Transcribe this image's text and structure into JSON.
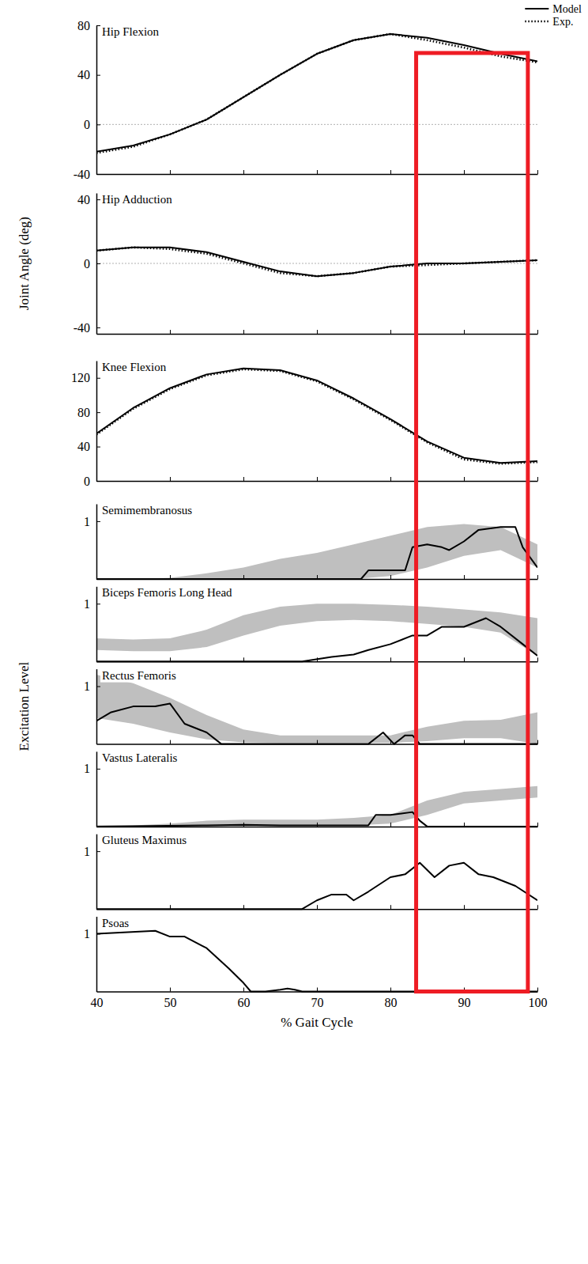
{
  "chart_data": [
    {
      "type": "line",
      "title": "Hip Flexion",
      "xlim": [
        40,
        100
      ],
      "xticks": [
        40,
        50,
        60,
        70,
        80,
        90,
        100
      ],
      "ylim": [
        -40,
        80
      ],
      "yticks": [
        -40,
        0,
        40,
        80
      ],
      "tick_labels": "y",
      "legend": "upper right",
      "series": [
        {
          "name": "Model",
          "type": "line",
          "line_style": "solid",
          "color": "#000000",
          "x": [
            40,
            45,
            50,
            55,
            60,
            65,
            70,
            75,
            80,
            85,
            90,
            95,
            100
          ],
          "values": [
            -22,
            -17,
            -8,
            4,
            22,
            40,
            57,
            68,
            73,
            70,
            64,
            57,
            51
          ]
        },
        {
          "name": "Exp.",
          "type": "line",
          "line_style": "dotted",
          "color": "#000000",
          "x": [
            40,
            45,
            50,
            55,
            60,
            65,
            70,
            75,
            80,
            85,
            90,
            95,
            100
          ],
          "values": [
            -23,
            -18,
            -8,
            4,
            22,
            40,
            57,
            68,
            73,
            68,
            62,
            55,
            50
          ]
        }
      ]
    },
    {
      "type": "line",
      "title": "Hip Adduction",
      "ylabel": "Joint Angle (deg)",
      "xlim": [
        40,
        100
      ],
      "xticks": [
        40,
        50,
        60,
        70,
        80,
        90,
        100
      ],
      "ylim": [
        -44,
        44
      ],
      "yticks": [
        -40,
        0,
        40
      ],
      "tick_labels": "y",
      "series": [
        {
          "type": "line",
          "line_style": "solid",
          "color": "#000000",
          "x": [
            40,
            45,
            50,
            55,
            60,
            65,
            70,
            75,
            80,
            85,
            90,
            95,
            100
          ],
          "values": [
            8,
            10,
            10,
            7,
            1,
            -5,
            -8,
            -6,
            -2,
            0,
            0,
            1,
            2
          ]
        },
        {
          "type": "line",
          "line_style": "dotted",
          "color": "#000000",
          "x": [
            40,
            45,
            50,
            55,
            60,
            65,
            70,
            75,
            80,
            85,
            90,
            95,
            100
          ],
          "values": [
            8,
            10,
            9,
            6,
            0,
            -6,
            -8,
            -6,
            -2,
            -1,
            0,
            1,
            2
          ]
        }
      ]
    },
    {
      "type": "line",
      "title": "Knee Flexion",
      "xlim": [
        40,
        100
      ],
      "xticks": [
        40,
        50,
        60,
        70,
        80,
        90,
        100
      ],
      "ylim": [
        0,
        140
      ],
      "yticks": [
        0,
        40,
        80,
        120
      ],
      "tick_labels": "y",
      "series": [
        {
          "type": "line",
          "line_style": "solid",
          "color": "#000000",
          "x": [
            40,
            45,
            50,
            55,
            60,
            65,
            70,
            75,
            80,
            85,
            90,
            95,
            100
          ],
          "values": [
            55,
            85,
            108,
            124,
            131,
            129,
            117,
            96,
            72,
            46,
            27,
            21,
            23
          ]
        },
        {
          "type": "line",
          "line_style": "dotted",
          "color": "#000000",
          "x": [
            40,
            45,
            50,
            55,
            60,
            65,
            70,
            75,
            80,
            85,
            90,
            95,
            100
          ],
          "values": [
            54,
            84,
            107,
            123,
            130,
            128,
            116,
            95,
            71,
            45,
            25,
            20,
            22
          ]
        }
      ]
    },
    {
      "type": "line",
      "title": "Semimembranosus",
      "xlim": [
        40,
        100
      ],
      "xticks": [
        40,
        50,
        60,
        70,
        80,
        90,
        100
      ],
      "ylim": [
        0,
        1.3
      ],
      "yticks": [
        1
      ],
      "tick_labels": "y",
      "series": [
        {
          "type": "area",
          "color": "#bfbfbf",
          "x": [
            40,
            45,
            50,
            55,
            60,
            65,
            70,
            75,
            80,
            85,
            90,
            95,
            100
          ],
          "lower": [
            0,
            0,
            0,
            0,
            0,
            0,
            0,
            0,
            0.05,
            0.2,
            0.4,
            0.5,
            0.2
          ],
          "upper": [
            0,
            0,
            0.02,
            0.1,
            0.2,
            0.35,
            0.45,
            0.6,
            0.75,
            0.9,
            0.95,
            0.9,
            0.6
          ]
        },
        {
          "type": "line",
          "line_style": "solid",
          "color": "#000000",
          "x": [
            40,
            76,
            77,
            80,
            82,
            83,
            85,
            87,
            88,
            90,
            92,
            95,
            97,
            98,
            100
          ],
          "values": [
            0,
            0,
            0.15,
            0.15,
            0.15,
            0.55,
            0.6,
            0.55,
            0.5,
            0.65,
            0.85,
            0.9,
            0.9,
            0.55,
            0.2
          ]
        }
      ]
    },
    {
      "type": "line",
      "title": "Biceps Femoris Long Head",
      "xlim": [
        40,
        100
      ],
      "xticks": [
        40,
        50,
        60,
        70,
        80,
        90,
        100
      ],
      "ylim": [
        0,
        1.3
      ],
      "yticks": [
        1
      ],
      "tick_labels": "y",
      "series": [
        {
          "type": "area",
          "color": "#bfbfbf",
          "x": [
            40,
            45,
            50,
            55,
            60,
            65,
            70,
            75,
            80,
            85,
            90,
            95,
            100
          ],
          "lower": [
            0.2,
            0.18,
            0.18,
            0.25,
            0.45,
            0.62,
            0.7,
            0.72,
            0.7,
            0.65,
            0.6,
            0.5,
            0.1
          ],
          "upper": [
            0.4,
            0.38,
            0.4,
            0.55,
            0.8,
            0.95,
            1.0,
            1.0,
            0.98,
            0.95,
            0.9,
            0.85,
            0.75
          ]
        },
        {
          "type": "line",
          "line_style": "solid",
          "color": "#000000",
          "x": [
            40,
            68,
            72,
            75,
            77,
            80,
            83,
            85,
            87,
            90,
            93,
            95,
            98,
            100
          ],
          "values": [
            0,
            0,
            0.08,
            0.12,
            0.2,
            0.3,
            0.45,
            0.45,
            0.6,
            0.6,
            0.75,
            0.6,
            0.3,
            0.1
          ]
        }
      ]
    },
    {
      "type": "line",
      "title": "Rectus Femoris",
      "ylabel": "Excitation Level",
      "xlim": [
        40,
        100
      ],
      "xticks": [
        40,
        50,
        60,
        70,
        80,
        90,
        100
      ],
      "ylim": [
        0,
        1.3
      ],
      "yticks": [
        1
      ],
      "tick_labels": "y",
      "series": [
        {
          "type": "area",
          "color": "#bfbfbf",
          "x": [
            40,
            45,
            50,
            55,
            60,
            65,
            70,
            75,
            80,
            85,
            90,
            95,
            100
          ],
          "lower": [
            0.45,
            0.35,
            0.2,
            0.08,
            0.03,
            0.02,
            0.02,
            0.02,
            0.02,
            0.05,
            0.1,
            0.1,
            0
          ],
          "upper": [
            1.2,
            1.05,
            0.8,
            0.5,
            0.25,
            0.15,
            0.15,
            0.15,
            0.15,
            0.3,
            0.4,
            0.42,
            0.55
          ]
        },
        {
          "type": "line",
          "line_style": "solid",
          "color": "#000000",
          "x": [
            40,
            42,
            45,
            48,
            50,
            52,
            55,
            57,
            77,
            79,
            80.5,
            82,
            83,
            84,
            100
          ],
          "values": [
            0.4,
            0.55,
            0.65,
            0.65,
            0.7,
            0.35,
            0.2,
            0,
            0,
            0.2,
            0,
            0.15,
            0.15,
            0,
            0
          ]
        }
      ]
    },
    {
      "type": "line",
      "title": "Vastus Lateralis",
      "xlim": [
        40,
        100
      ],
      "xticks": [
        40,
        50,
        60,
        70,
        80,
        90,
        100
      ],
      "ylim": [
        0,
        1.3
      ],
      "yticks": [
        1
      ],
      "tick_labels": "y",
      "series": [
        {
          "type": "area",
          "color": "#bfbfbf",
          "x": [
            40,
            45,
            50,
            55,
            60,
            65,
            70,
            75,
            80,
            85,
            90,
            95,
            100
          ],
          "lower": [
            0,
            0,
            0,
            0.02,
            0.02,
            0.02,
            0.02,
            0.02,
            0.05,
            0.2,
            0.4,
            0.45,
            0.5
          ],
          "upper": [
            0.02,
            0.02,
            0.05,
            0.1,
            0.12,
            0.12,
            0.12,
            0.15,
            0.2,
            0.45,
            0.6,
            0.65,
            0.7
          ]
        },
        {
          "type": "line",
          "line_style": "solid",
          "color": "#000000",
          "x": [
            40,
            55,
            60,
            65,
            77,
            78,
            80,
            83,
            84,
            85,
            100
          ],
          "values": [
            0,
            0.02,
            0.03,
            0.02,
            0.02,
            0.2,
            0.2,
            0.25,
            0.1,
            0,
            0
          ]
        }
      ]
    },
    {
      "type": "line",
      "title": "Gluteus Maximus",
      "xlim": [
        40,
        100
      ],
      "xticks": [
        40,
        50,
        60,
        70,
        80,
        90,
        100
      ],
      "ylim": [
        0,
        1.3
      ],
      "yticks": [
        1
      ],
      "tick_labels": "y",
      "series": [
        {
          "type": "line",
          "line_style": "solid",
          "color": "#000000",
          "x": [
            40,
            68,
            70,
            72,
            74,
            75,
            77,
            80,
            82,
            84,
            86,
            88,
            90,
            92,
            94,
            97,
            100
          ],
          "values": [
            0,
            0,
            0.15,
            0.25,
            0.25,
            0.15,
            0.3,
            0.55,
            0.6,
            0.8,
            0.55,
            0.75,
            0.8,
            0.6,
            0.55,
            0.4,
            0.15
          ]
        }
      ]
    },
    {
      "type": "line",
      "title": "Psoas",
      "xlabel": "% Gait Cycle",
      "xlim": [
        40,
        100
      ],
      "xticks": [
        40,
        50,
        60,
        70,
        80,
        90,
        100
      ],
      "ylim": [
        0,
        1.3
      ],
      "yticks": [
        1
      ],
      "series": [
        {
          "type": "line",
          "line_style": "solid",
          "color": "#000000",
          "x": [
            40,
            48,
            50,
            52,
            55,
            58,
            60,
            61,
            63,
            65,
            66,
            67,
            68,
            100
          ],
          "values": [
            1.0,
            1.05,
            0.95,
            0.95,
            0.75,
            0.4,
            0.15,
            0,
            0,
            0.03,
            0.05,
            0.03,
            0,
            0
          ]
        }
      ]
    }
  ],
  "annotations": [
    {
      "type": "rect",
      "x": [
        83.5,
        98.7
      ],
      "color": "#ee1c24"
    }
  ]
}
